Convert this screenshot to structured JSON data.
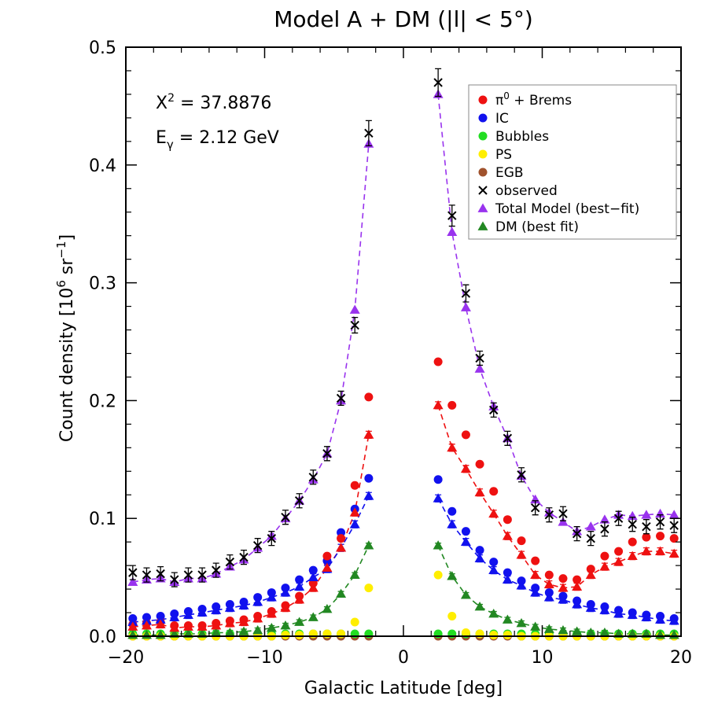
{
  "chart_data": {
    "type": "scatter",
    "title": "Model A + DM (|l| < 5°)",
    "xlabel": "Galactic Latitude [deg]",
    "ylabel_prefix": "Count density  [10",
    "ylabel_exp1": "6",
    "ylabel_mid": " sr",
    "ylabel_exp2": "−1",
    "ylabel_suffix": "]",
    "xlim": [
      -20,
      20
    ],
    "ylim": [
      0,
      0.5
    ],
    "x_ticks": [
      -20,
      -10,
      0,
      10,
      20
    ],
    "x_tick_labels": [
      "−20",
      "−10",
      "0",
      "10",
      "20"
    ],
    "y_ticks": [
      0,
      0.1,
      0.2,
      0.3,
      0.4,
      0.5
    ],
    "y_tick_labels": [
      "0.0",
      "0.1",
      "0.2",
      "0.3",
      "0.4",
      "0.5"
    ],
    "annotations": {
      "chi2_base": "X",
      "chi2_exp": "2",
      "chi2_rest": " = 37.8876",
      "egamma_base": "E",
      "egamma_sub": "γ",
      "egamma_rest": " = 2.12 GeV"
    },
    "legend_position": "top-right",
    "legend": [
      {
        "label_main": "π",
        "label_sup": "0",
        "label_rest": " + Brems",
        "color": "#ee1111",
        "marker": "circle"
      },
      {
        "label_main": "IC",
        "color": "#1111ee",
        "marker": "circle"
      },
      {
        "label_main": "Bubbles",
        "color": "#22dd22",
        "marker": "circle"
      },
      {
        "label_main": "PS",
        "color": "#ffee00",
        "marker": "circle"
      },
      {
        "label_main": "EGB",
        "color": "#a0522d",
        "marker": "circle"
      },
      {
        "label_main": "observed",
        "color": "#000000",
        "marker": "x"
      },
      {
        "label_main": "Total Model (best−fit)",
        "color": "#9933ee",
        "marker": "triangle"
      },
      {
        "label_main": "DM (best fit)",
        "color": "#228822",
        "marker": "triangle"
      }
    ],
    "x_neg": [
      -19.5,
      -18.5,
      -17.5,
      -16.5,
      -15.5,
      -14.5,
      -13.5,
      -12.5,
      -11.5,
      -10.5,
      -9.5,
      -8.5,
      -7.5,
      -6.5,
      -5.5,
      -4.5,
      -3.5,
      -2.5
    ],
    "x_pos": [
      2.5,
      3.5,
      4.5,
      5.5,
      6.5,
      7.5,
      8.5,
      9.5,
      10.5,
      11.5,
      12.5,
      13.5,
      14.5,
      15.5,
      16.5,
      17.5,
      18.5,
      19.5
    ],
    "observed_neg": [
      0.054,
      0.052,
      0.053,
      0.048,
      0.052,
      0.052,
      0.056,
      0.063,
      0.067,
      0.077,
      0.083,
      0.101,
      0.115,
      0.135,
      0.155,
      0.202,
      0.264,
      0.427
    ],
    "observed_pos": [
      0.47,
      0.357,
      0.291,
      0.236,
      0.192,
      0.168,
      0.137,
      0.109,
      0.103,
      0.104,
      0.087,
      0.083,
      0.091,
      0.1,
      0.095,
      0.093,
      0.097,
      0.094
    ],
    "observed_err": 0.006,
    "total_neg": [
      0.046,
      0.048,
      0.049,
      0.046,
      0.049,
      0.049,
      0.053,
      0.059,
      0.065,
      0.075,
      0.085,
      0.1,
      0.115,
      0.133,
      0.155,
      0.2,
      0.277,
      0.418
    ],
    "total_pos": [
      0.46,
      0.343,
      0.279,
      0.227,
      0.195,
      0.168,
      0.136,
      0.116,
      0.105,
      0.097,
      0.089,
      0.093,
      0.099,
      0.103,
      0.102,
      0.103,
      0.104,
      0.103
    ],
    "pi0_circles_neg": [
      0.01,
      0.011,
      0.012,
      0.009,
      0.009,
      0.009,
      0.011,
      0.013,
      0.014,
      0.017,
      0.021,
      0.026,
      0.034,
      0.045,
      0.068,
      0.083,
      0.128,
      0.203
    ],
    "pi0_circles_pos": [
      0.233,
      0.196,
      0.171,
      0.146,
      0.123,
      0.099,
      0.081,
      0.064,
      0.052,
      0.049,
      0.048,
      0.057,
      0.068,
      0.072,
      0.08,
      0.084,
      0.085,
      0.083
    ],
    "pi0_tri_neg": [
      0.008,
      0.009,
      0.01,
      0.007,
      0.008,
      0.008,
      0.009,
      0.011,
      0.012,
      0.015,
      0.019,
      0.024,
      0.031,
      0.041,
      0.058,
      0.075,
      0.105,
      0.171
    ],
    "pi0_tri_pos": [
      0.196,
      0.16,
      0.142,
      0.122,
      0.104,
      0.085,
      0.069,
      0.052,
      0.044,
      0.041,
      0.042,
      0.052,
      0.059,
      0.063,
      0.068,
      0.072,
      0.072,
      0.07
    ],
    "ic_circles_neg": [
      0.015,
      0.016,
      0.017,
      0.019,
      0.021,
      0.023,
      0.025,
      0.027,
      0.029,
      0.033,
      0.037,
      0.041,
      0.048,
      0.056,
      0.064,
      0.088,
      0.108,
      0.134
    ],
    "ic_circles_pos": [
      0.133,
      0.106,
      0.089,
      0.073,
      0.063,
      0.054,
      0.047,
      0.041,
      0.037,
      0.034,
      0.03,
      0.027,
      0.025,
      0.022,
      0.02,
      0.018,
      0.017,
      0.015
    ],
    "ic_tri_neg": [
      0.012,
      0.013,
      0.014,
      0.016,
      0.018,
      0.02,
      0.022,
      0.024,
      0.026,
      0.029,
      0.033,
      0.037,
      0.042,
      0.05,
      0.057,
      0.075,
      0.095,
      0.119
    ],
    "ic_tri_pos": [
      0.117,
      0.095,
      0.08,
      0.066,
      0.056,
      0.048,
      0.043,
      0.037,
      0.033,
      0.031,
      0.027,
      0.024,
      0.022,
      0.019,
      0.018,
      0.016,
      0.014,
      0.013
    ],
    "dm_neg": [
      0.001,
      0.001,
      0.001,
      0.002,
      0.002,
      0.002,
      0.003,
      0.003,
      0.004,
      0.005,
      0.007,
      0.009,
      0.012,
      0.016,
      0.023,
      0.036,
      0.052,
      0.077
    ],
    "dm_pos": [
      0.077,
      0.051,
      0.035,
      0.025,
      0.019,
      0.014,
      0.011,
      0.008,
      0.006,
      0.005,
      0.004,
      0.003,
      0.003,
      0.002,
      0.002,
      0.002,
      0.001,
      0.001
    ],
    "bubbles_neg": [
      0.002,
      0.002,
      0.002,
      0.002,
      0.002,
      0.002,
      0.002,
      0.002,
      0.002,
      0.002,
      0.002,
      0.002,
      0.002,
      0.002,
      0.002,
      0.002,
      0.002,
      0.002
    ],
    "bubbles_pos": [
      0.002,
      0.002,
      0.002,
      0.002,
      0.002,
      0.002,
      0.002,
      0.002,
      0.002,
      0.002,
      0.002,
      0.002,
      0.002,
      0.002,
      0.002,
      0.002,
      0.002,
      0.002
    ],
    "ps_neg": [
      0.0,
      0.0,
      0.0,
      0.0,
      0.0,
      0.0,
      0.0,
      0.0,
      0.0,
      0.0,
      0.0,
      0.001,
      0.001,
      0.002,
      0.002,
      0.002,
      0.012,
      0.041
    ],
    "ps_pos": [
      0.052,
      0.017,
      0.003,
      0.002,
      0.001,
      0.001,
      0.0,
      0.0,
      0.0,
      0.0,
      0.0,
      0.0,
      0.0,
      0.0,
      0.0,
      0.0,
      0.0,
      0.0
    ],
    "egb_neg": [
      0.0,
      0.0,
      0.0,
      0.0,
      0.0,
      0.0,
      0.0,
      0.0,
      0.0,
      0.0,
      0.0,
      0.0,
      0.0,
      0.0,
      0.0,
      0.0,
      0.0,
      0.0
    ],
    "egb_pos": [
      0.0,
      0.0,
      0.0,
      0.0,
      0.0,
      0.0,
      0.0,
      0.0,
      0.0,
      0.0,
      0.0,
      0.0,
      0.0,
      0.0,
      0.0,
      0.0,
      0.0,
      0.0
    ]
  }
}
